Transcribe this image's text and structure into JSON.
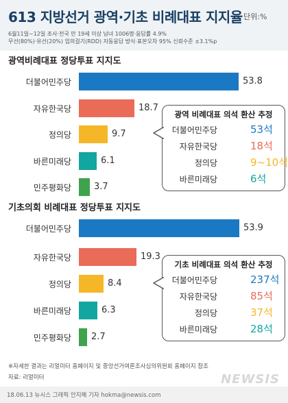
{
  "title": "613 지방선거 광역·기초 비례대표 지지율",
  "unit": "단위:%",
  "survey_line1": "6월11일~12일 조사·전국 만 19세 이상 남녀 1006명·응답률 4.9%",
  "survey_line2": "무선(80%)·유선(20%) 임의걸기(RDD) 자동응답 방식·표본오차 95% 신뢰수준 ±3.1%p",
  "footer": {
    "note": "※자세한 결과는 리얼미터 홈페이지 및 중앙선거여론조사심의위원회 홈페이지 참조",
    "source": "자료: 리얼미터",
    "credit": "18.06.13 뉴시스 그래픽 안지혜 기자  hokma@newsis.com",
    "logo": "NEWSIS"
  },
  "colors": {
    "더불어민주당": "#1b78c2",
    "자유한국당": "#e96b58",
    "정의당": "#f5b727",
    "바른미래당": "#12a6a0",
    "민주평화당": "#3fa34d"
  },
  "chart_data": [
    {
      "type": "bar",
      "title": "광역비례대표 정당투표 지지도",
      "categories": [
        "더불어민주당",
        "자유한국당",
        "정의당",
        "바른미래당",
        "민주평화당"
      ],
      "values": [
        53.8,
        18.7,
        9.7,
        6.1,
        3.7
      ],
      "value_labels": [
        "53.8",
        "18.7",
        "9.7",
        "6.1",
        "3.7"
      ],
      "annotation": {
        "title": "광역 비례대표 의석 환산 추정",
        "rows": [
          {
            "party": "더불어민주당",
            "seats": "53석"
          },
          {
            "party": "자유한국당",
            "seats": "18석"
          },
          {
            "party": "정의당",
            "seats": "9~10석"
          },
          {
            "party": "바른미래당",
            "seats": "6석"
          }
        ]
      }
    },
    {
      "type": "bar",
      "title": "기초의회 비례대표 정당투표 지지도",
      "categories": [
        "더불어민주당",
        "자유한국당",
        "정의당",
        "바른미래당",
        "민주평화당"
      ],
      "values": [
        53.9,
        19.3,
        8.4,
        6.3,
        2.7
      ],
      "value_labels": [
        "53.9",
        "19.3",
        "8.4",
        "6.3",
        "2.7"
      ],
      "annotation": {
        "title": "기초 비례대표 의석 환산 추정",
        "rows": [
          {
            "party": "더불어민주당",
            "seats": "237석"
          },
          {
            "party": "자유한국당",
            "seats": "85석"
          },
          {
            "party": "정의당",
            "seats": "37석"
          },
          {
            "party": "바른미래당",
            "seats": "28석"
          }
        ]
      }
    }
  ]
}
